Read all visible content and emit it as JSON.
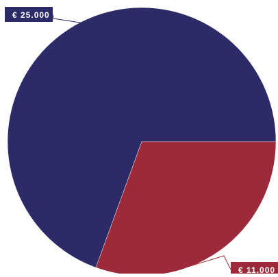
{
  "chart_data": {
    "type": "pie",
    "slices": [
      {
        "label": "€ 25.000",
        "value": 25000,
        "color": "#2d2a68"
      },
      {
        "label": "€ 11.000",
        "value": 11000,
        "color": "#9d2a3a"
      }
    ],
    "legend": "none",
    "data_labels": "callout"
  }
}
